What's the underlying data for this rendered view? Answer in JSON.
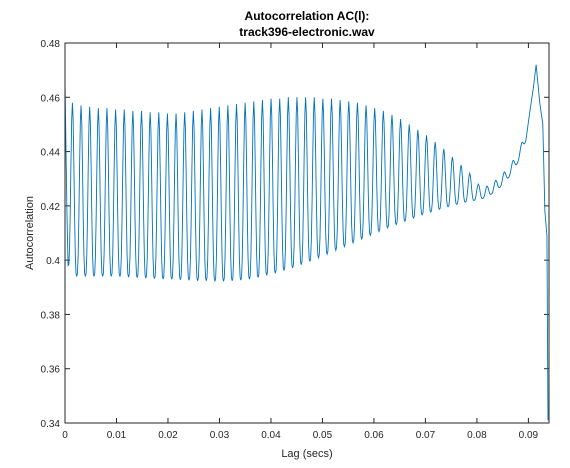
{
  "chart_data": {
    "type": "line",
    "title": "Autocorrelation AC(l):",
    "subtitle": "track396-electronic.wav",
    "xlabel": "Lag (secs)",
    "ylabel": "Autocorrelation",
    "xlim": [
      0,
      0.094
    ],
    "ylim": [
      0.34,
      0.48
    ],
    "x_ticks": [
      0,
      0.01,
      0.02,
      0.03,
      0.04,
      0.05,
      0.06,
      0.07,
      0.08,
      0.09
    ],
    "x_tick_labels": [
      "0",
      "0.01",
      "0.02",
      "0.03",
      "0.04",
      "0.05",
      "0.06",
      "0.07",
      "0.08",
      "0.09"
    ],
    "y_ticks": [
      0.34,
      0.36,
      0.38,
      0.4,
      0.42,
      0.44,
      0.46,
      0.48
    ],
    "y_tick_labels": [
      "0.34",
      "0.36",
      "0.38",
      "0.4",
      "0.42",
      "0.44",
      "0.46",
      "0.48"
    ],
    "grid": false,
    "series": [
      {
        "color": "#0072bd",
        "x": [
          0,
          0.0002,
          0.0004,
          0.0006,
          0.001,
          0.0018,
          0.0035,
          0.0052,
          0.0069,
          0.0086,
          0.0103,
          0.012,
          0.0137,
          0.0154,
          0.0171,
          0.0188,
          0.0205,
          0.0222,
          0.0239,
          0.0256,
          0.0273,
          0.029,
          0.0307,
          0.0324,
          0.0341,
          0.0358,
          0.0375,
          0.0392,
          0.0409,
          0.0426,
          0.0443,
          0.046,
          0.0477,
          0.0494,
          0.0511,
          0.0528,
          0.0545,
          0.0562,
          0.0579,
          0.0596,
          0.0613,
          0.063,
          0.0647,
          0.0664,
          0.0681,
          0.0698,
          0.0715,
          0.0732,
          0.0749,
          0.0766,
          0.0783,
          0.08,
          0.0817,
          0.0834,
          0.0851,
          0.0868,
          0.0885,
          0.0895,
          0.0903,
          0.091,
          0.0915,
          0.0922,
          0.0928,
          0.0932,
          0.0936,
          0.0938
        ],
        "y": [
          0.466,
          0.44,
          0.415,
          0.398,
          0.396,
          0.394,
          0.394,
          0.394,
          0.394,
          0.394,
          0.394,
          0.3938,
          0.3936,
          0.3934,
          0.3932,
          0.393,
          0.393,
          0.3928,
          0.3926,
          0.3924,
          0.3924,
          0.3922,
          0.3922,
          0.3924,
          0.3926,
          0.393,
          0.3936,
          0.3944,
          0.3952,
          0.3962,
          0.3972,
          0.3984,
          0.3996,
          0.401,
          0.4024,
          0.4038,
          0.4052,
          0.4066,
          0.408,
          0.4094,
          0.4108,
          0.4122,
          0.4134,
          0.4146,
          0.4158,
          0.417,
          0.418,
          0.419,
          0.42,
          0.4208,
          0.4216,
          0.4222,
          0.423,
          0.425,
          0.428,
          0.432,
          0.438,
          0.444,
          0.455,
          0.464,
          0.472,
          0.458,
          0.45,
          0.418,
          0.409,
          0.341
        ],
        "peaks": [
          0.458,
          0.457,
          0.4565,
          0.456,
          0.456,
          0.4555,
          0.4555,
          0.455,
          0.455,
          0.4545,
          0.4545,
          0.454,
          0.454,
          0.4545,
          0.455,
          0.4555,
          0.456,
          0.4565,
          0.457,
          0.4575,
          0.458,
          0.4585,
          0.459,
          0.4595,
          0.4595,
          0.46,
          0.46,
          0.46,
          0.46,
          0.4595,
          0.4595,
          0.459,
          0.4585,
          0.458,
          0.457,
          0.456,
          0.455,
          0.4535,
          0.452,
          0.45,
          0.448,
          0.446,
          0.4435,
          0.441,
          0.438,
          0.435,
          0.432,
          0.428,
          0.424,
          0.42,
          0.416,
          0.412,
          0.409
        ]
      }
    ]
  }
}
